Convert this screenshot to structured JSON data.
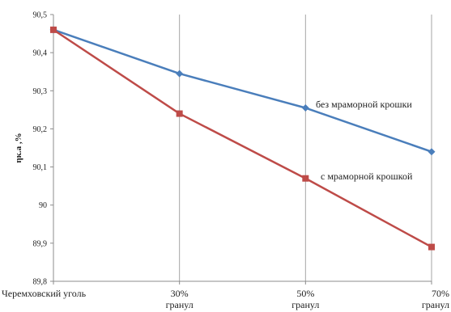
{
  "chart_data": {
    "type": "line",
    "categories": [
      [
        "Черемховский уголь"
      ],
      [
        "30%",
        "гранул"
      ],
      [
        "50%",
        "гранул"
      ],
      [
        "70%",
        "гранул"
      ]
    ],
    "series": [
      {
        "name": "без мраморной крошки",
        "color": "#4a7ebb",
        "marker": "diamond",
        "values": [
          90.46,
          90.345,
          90.255,
          90.14
        ]
      },
      {
        "name": "с мраморной крошкой",
        "color": "#be4b48",
        "marker": "square",
        "values": [
          90.46,
          90.24,
          90.07,
          89.89
        ]
      }
    ],
    "annotations": [
      "без мраморной крошки",
      "с мраморной крошкой"
    ],
    "ylabel": "ηк.а ,%",
    "ylim": [
      89.8,
      90.5
    ],
    "yticks": [
      "89,8",
      "89,9",
      "90",
      "90,1",
      "90,2",
      "90,3",
      "90,4",
      "90,5"
    ],
    "grid": "vertical",
    "legend": "none"
  }
}
